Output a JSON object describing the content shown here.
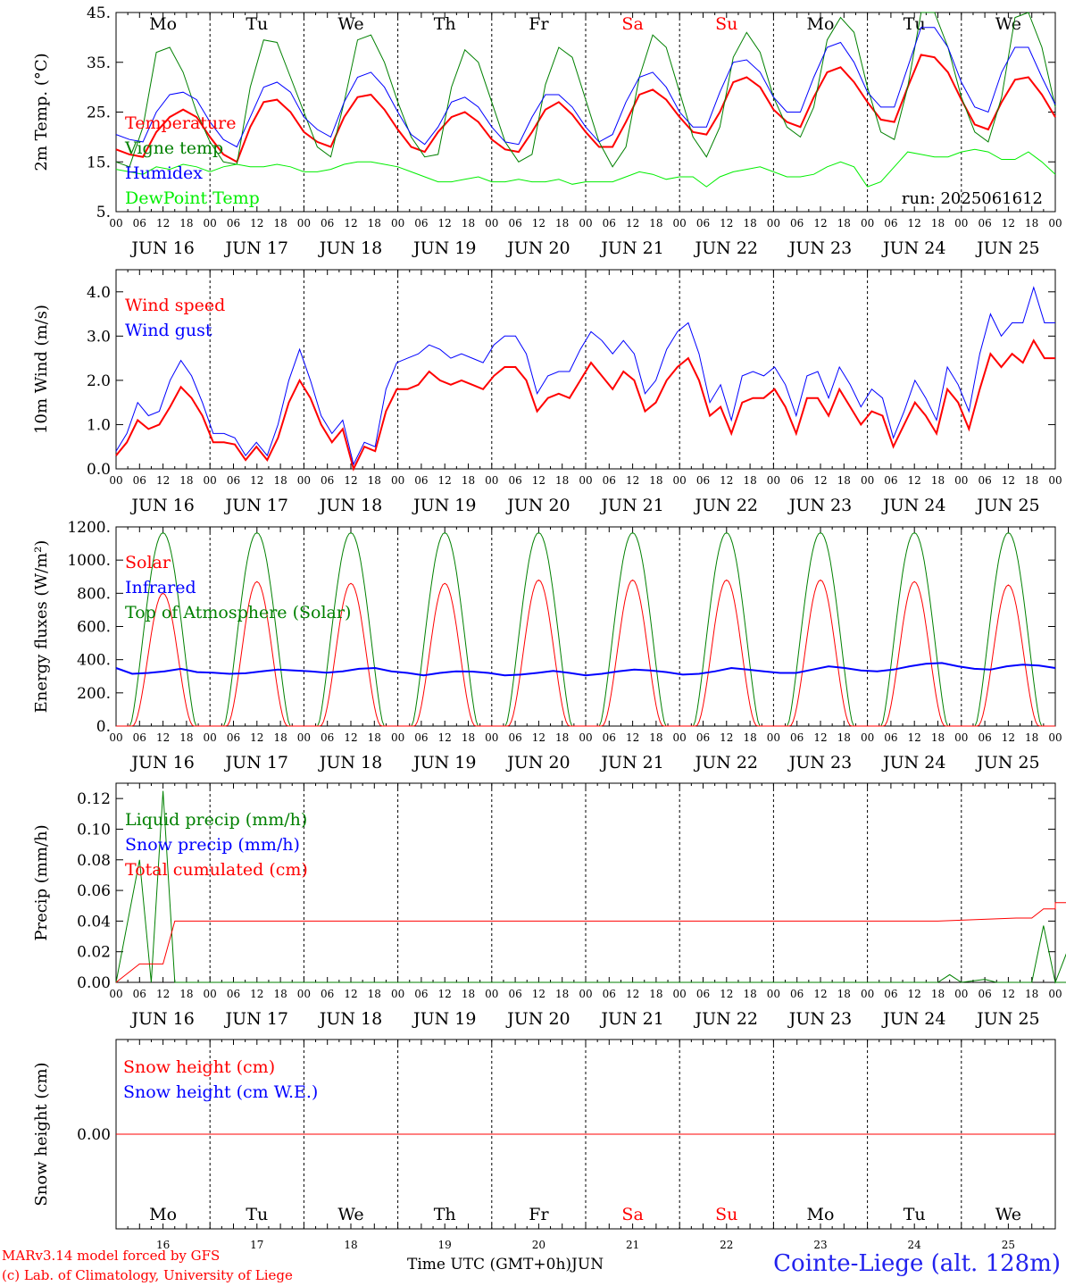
{
  "chart_data": [
    {
      "type": "line",
      "ylabel": "2m Temp. (°C)",
      "ylim": [
        5,
        45
      ],
      "yticks": [
        "5.",
        "15.",
        "25.",
        "35.",
        "45."
      ],
      "run_label": "run: 2025061612",
      "day_labels": [
        "Mo",
        "Tu",
        "We",
        "Th",
        "Fr",
        "Sa",
        "Su",
        "Mo",
        "Tu",
        "We"
      ],
      "day_label_colors": [
        "#000000",
        "#000000",
        "#000000",
        "#000000",
        "#000000",
        "#ff0000",
        "#ff0000",
        "#000000",
        "#000000",
        "#000000"
      ],
      "x_hours_step": 6,
      "series": [
        {
          "name": "Temperature",
          "color": "#ff0000",
          "width": 2,
          "values": [
            17.5,
            16.5,
            16,
            21,
            24,
            25.5,
            24,
            20,
            16.5,
            15,
            22,
            27,
            27.5,
            25,
            21,
            19,
            18,
            24,
            28,
            28.5,
            25.5,
            21.5,
            18,
            17,
            21,
            24,
            25,
            23,
            19.5,
            17.5,
            17,
            21,
            25.5,
            27,
            24.5,
            21,
            18,
            18,
            23,
            28.5,
            29.5,
            27.5,
            24,
            21,
            20.5,
            25,
            31,
            32,
            30,
            25.5,
            23,
            22,
            28,
            33,
            34,
            31,
            27,
            23.5,
            23,
            30,
            36.5,
            36,
            33,
            27.5,
            22.5,
            21.5,
            27,
            31.5,
            32,
            28.5,
            24
          ]
        },
        {
          "name": "Vigne temp",
          "color": "#008000",
          "width": 1,
          "values": [
            15,
            14,
            22,
            37,
            38,
            33,
            25,
            19,
            15,
            14.5,
            30,
            39.5,
            39,
            32,
            25,
            18,
            16,
            27,
            39.5,
            40.5,
            35,
            27,
            20,
            16,
            16.5,
            30,
            37.5,
            35,
            27,
            19,
            15,
            16.5,
            30.5,
            38,
            36,
            27.5,
            19,
            14,
            18,
            32,
            40.5,
            38,
            29,
            20,
            16,
            22,
            36,
            41,
            37,
            28,
            22,
            20,
            26,
            39.5,
            44,
            41,
            30,
            21,
            19.5,
            30,
            45,
            45,
            38,
            28,
            21,
            19,
            28,
            44,
            45,
            38,
            26
          ]
        },
        {
          "name": "Humidex",
          "color": "#0000ff",
          "width": 1,
          "values": [
            20.5,
            19.5,
            19,
            25,
            28.5,
            29,
            27.5,
            23,
            19.5,
            18,
            24,
            30,
            31,
            29,
            24,
            21.5,
            20,
            27,
            32,
            33,
            30,
            25,
            20.5,
            18.5,
            22,
            27,
            28,
            26,
            22,
            19,
            18.5,
            24,
            28.5,
            28.5,
            26,
            22,
            19,
            20.5,
            27,
            32,
            33,
            30,
            25,
            22,
            22,
            29,
            35,
            35.5,
            33,
            28,
            25,
            25,
            32,
            38,
            39,
            35,
            29,
            26,
            26,
            34,
            42,
            42,
            38,
            31,
            26,
            25,
            33,
            38,
            38,
            32,
            26.5
          ]
        },
        {
          "name": "DewPoint Temp",
          "color": "#00ee00",
          "width": 1,
          "values": [
            13.5,
            13,
            12.5,
            14,
            13.5,
            14.5,
            14,
            13,
            14,
            14.5,
            14,
            14,
            14.5,
            14,
            13,
            13,
            13.5,
            14.5,
            15,
            15,
            14.5,
            14,
            13,
            12,
            11,
            11,
            11.5,
            12,
            11,
            11,
            11.5,
            11,
            11,
            11.5,
            10.5,
            11,
            11,
            11,
            12,
            13,
            12.5,
            11.5,
            12,
            12,
            10,
            12,
            13,
            13.5,
            14,
            13,
            12,
            12,
            12.5,
            14,
            15,
            14,
            10,
            11,
            14,
            17,
            16.5,
            16,
            16,
            17,
            17.5,
            17,
            15.5,
            15.5,
            17,
            15,
            12.5
          ]
        }
      ]
    },
    {
      "type": "line",
      "ylabel": "10m Wind (m/s)",
      "ylim": [
        0,
        4.5
      ],
      "yticks": [
        "0.0",
        "1.0",
        "2.0",
        "3.0",
        "4.0"
      ],
      "x_hours_step": 6,
      "series": [
        {
          "name": "Wind speed",
          "color": "#ff0000",
          "width": 2,
          "values": [
            0.3,
            0.6,
            1.1,
            0.9,
            1.0,
            1.4,
            1.85,
            1.6,
            1.2,
            0.6,
            0.6,
            0.55,
            0.2,
            0.5,
            0.2,
            0.7,
            1.5,
            2.0,
            1.6,
            1.0,
            0.6,
            0.9,
            0.0,
            0.5,
            0.4,
            1.3,
            1.8,
            1.8,
            1.9,
            2.2,
            2.0,
            1.9,
            2.0,
            1.9,
            1.8,
            2.1,
            2.3,
            2.3,
            2.0,
            1.3,
            1.6,
            1.7,
            1.6,
            2.0,
            2.4,
            2.1,
            1.8,
            2.2,
            2.0,
            1.3,
            1.5,
            2.0,
            2.3,
            2.5,
            2.0,
            1.2,
            1.4,
            0.8,
            1.5,
            1.6,
            1.6,
            1.8,
            1.4,
            0.8,
            1.6,
            1.6,
            1.2,
            1.8,
            1.4,
            1.0,
            1.3,
            1.2,
            0.5,
            1.0,
            1.5,
            1.2,
            0.8,
            1.8,
            1.5,
            0.9,
            1.8,
            2.6,
            2.3,
            2.6,
            2.4,
            2.9,
            2.5,
            2.5
          ]
        },
        {
          "name": "Wind gust",
          "color": "#0000ff",
          "width": 1,
          "values": [
            0.4,
            0.8,
            1.5,
            1.2,
            1.3,
            2.0,
            2.45,
            2.1,
            1.5,
            0.8,
            0.8,
            0.7,
            0.3,
            0.6,
            0.3,
            1.0,
            2.0,
            2.7,
            2.0,
            1.2,
            0.8,
            1.1,
            0.1,
            0.6,
            0.5,
            1.8,
            2.4,
            2.5,
            2.6,
            2.8,
            2.7,
            2.5,
            2.6,
            2.5,
            2.4,
            2.8,
            3.0,
            3.0,
            2.6,
            1.7,
            2.1,
            2.2,
            2.2,
            2.7,
            3.1,
            2.9,
            2.6,
            2.9,
            2.6,
            1.7,
            2.0,
            2.7,
            3.1,
            3.3,
            2.6,
            1.5,
            1.9,
            1.1,
            2.1,
            2.2,
            2.1,
            2.3,
            1.9,
            1.2,
            2.1,
            2.2,
            1.6,
            2.3,
            1.9,
            1.4,
            1.8,
            1.6,
            0.7,
            1.3,
            2.0,
            1.6,
            1.1,
            2.3,
            1.9,
            1.3,
            2.6,
            3.5,
            3.0,
            3.3,
            3.3,
            4.1,
            3.3,
            3.3
          ]
        }
      ]
    },
    {
      "type": "line",
      "ylabel": "Energy fluxes (W/m²)",
      "ylim": [
        0,
        1200
      ],
      "yticks": [
        "0.",
        "200.",
        "400.",
        "600.",
        "800.",
        "1000.",
        "1200."
      ],
      "x_hours_step": 6,
      "solar_peaks": [
        800,
        870,
        860,
        860,
        880,
        880,
        880,
        880,
        870,
        850
      ],
      "toa_peak": 1165,
      "series": [
        {
          "name": "Solar",
          "color": "#ff0000",
          "width": 1
        },
        {
          "name": "Infrared",
          "color": "#0000ff",
          "width": 2,
          "values": [
            350,
            315,
            320,
            330,
            345,
            325,
            322,
            315,
            318,
            330,
            340,
            335,
            330,
            322,
            330,
            345,
            350,
            330,
            320,
            305,
            320,
            330,
            328,
            320,
            305,
            310,
            320,
            332,
            320,
            305,
            315,
            330,
            340,
            335,
            325,
            310,
            315,
            330,
            350,
            340,
            330,
            320,
            320,
            340,
            360,
            350,
            335,
            330,
            340,
            360,
            375,
            380,
            360,
            345,
            340,
            360,
            370,
            365,
            350
          ]
        },
        {
          "name": "Top of Atmosphere (Solar)",
          "color": "#008000",
          "width": 1
        }
      ]
    },
    {
      "type": "line",
      "ylabel": "Precip (mm/h)",
      "ylim": [
        0,
        0.13
      ],
      "yticks": [
        "0.00",
        "0.02",
        "0.04",
        "0.06",
        "0.08",
        "0.10",
        "0.12"
      ],
      "x_hours_step": 6,
      "series": [
        {
          "name": "Liquid precip (mm/h)",
          "color": "#008000",
          "width": 1,
          "points": [
            [
              0,
              0
            ],
            [
              6,
              0.08
            ],
            [
              9,
              0
            ],
            [
              12,
              0.125
            ],
            [
              15,
              0
            ],
            [
              210,
              0
            ],
            [
              213,
              0.005
            ],
            [
              216,
              0
            ],
            [
              222,
              0.002
            ],
            [
              225,
              0
            ],
            [
              234,
              0
            ],
            [
              237,
              0.037
            ],
            [
              240,
              0
            ],
            [
              243,
              0.02
            ],
            [
              246,
              0
            ],
            [
              240,
              0
            ]
          ]
        },
        {
          "name": "Snow precip (mm/h)",
          "color": "#0000ff",
          "width": 1,
          "points": []
        },
        {
          "name": "Total cumulated (cm)",
          "color": "#ff0000",
          "width": 1,
          "points": [
            [
              0,
              0
            ],
            [
              6,
              0.012
            ],
            [
              12,
              0.012
            ],
            [
              15,
              0.04
            ],
            [
              210,
              0.04
            ],
            [
              230,
              0.042
            ],
            [
              234,
              0.042
            ],
            [
              237,
              0.048
            ],
            [
              240,
              0.048
            ],
            [
              243,
              0.052
            ],
            [
              240,
              0.052
            ]
          ]
        }
      ]
    },
    {
      "type": "line",
      "ylabel": "Snow height (cm)",
      "yticks": [
        "0.00"
      ],
      "series": [
        {
          "name": "Snow height (cm)",
          "color": "#ff0000",
          "width": 1,
          "values": [
            0,
            0
          ]
        },
        {
          "name": "Snow height (cm W.E.)",
          "color": "#0000ff",
          "width": 1,
          "values": []
        }
      ],
      "day_labels": [
        "Mo",
        "Tu",
        "We",
        "Th",
        "Fr",
        "Sa",
        "Su",
        "Mo",
        "Tu",
        "We"
      ],
      "day_numbers": [
        "16",
        "17",
        "18",
        "19",
        "20",
        "21",
        "22",
        "23",
        "24",
        "25"
      ]
    }
  ],
  "date_labels": [
    "JUN 16",
    "JUN 17",
    "JUN 18",
    "JUN 19",
    "JUN 20",
    "JUN 21",
    "JUN 22",
    "JUN 23",
    "JUN 24",
    "JUN 25"
  ],
  "hour_labels": [
    "00",
    "06",
    "12",
    "18"
  ],
  "footer": {
    "model_line": "MARv3.14 model forced by GFS",
    "credit_line": "(c) Lab. of Climatology, University of Liege",
    "axis_title": "Time UTC (GMT+0h)",
    "month": "JUN",
    "station": "Cointe-Liege (alt. 128m)"
  }
}
